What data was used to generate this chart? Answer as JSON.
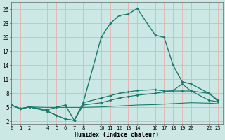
{
  "bg_color": "#cce8e4",
  "grid_color": "#e8b0b0",
  "line_color": "#1a7a6e",
  "x_ticks": [
    0,
    1,
    2,
    4,
    5,
    6,
    7,
    8,
    10,
    11,
    12,
    13,
    14,
    16,
    17,
    18,
    19,
    20,
    22,
    23
  ],
  "y_ticks": [
    2,
    5,
    8,
    11,
    14,
    17,
    20,
    23,
    26
  ],
  "xlabel": "Humidex (Indice chaleur)",
  "series": [
    {
      "x": [
        0,
        1,
        2,
        4,
        5,
        6,
        7,
        8,
        10,
        11,
        12,
        13,
        14,
        16,
        17,
        18,
        19,
        20,
        22,
        23
      ],
      "y": [
        5.5,
        4.7,
        5.1,
        5.0,
        5.0,
        5.0,
        5.0,
        5.0,
        5.1,
        5.2,
        5.3,
        5.4,
        5.5,
        5.6,
        5.7,
        5.8,
        5.9,
        6.0,
        5.9,
        5.8
      ],
      "marker": false,
      "lw": 0.8
    },
    {
      "x": [
        0,
        1,
        2,
        4,
        5,
        6,
        7,
        8,
        10,
        11,
        12,
        13,
        14,
        16,
        17,
        18,
        19,
        20,
        22,
        23
      ],
      "y": [
        5.5,
        4.7,
        5.1,
        4.2,
        3.3,
        2.5,
        2.2,
        5.5,
        6.0,
        6.5,
        7.0,
        7.3,
        7.6,
        8.0,
        8.3,
        8.6,
        10.0,
        8.5,
        6.5,
        6.2
      ],
      "marker": true,
      "lw": 0.9
    },
    {
      "x": [
        0,
        1,
        2,
        4,
        5,
        6,
        7,
        8,
        10,
        11,
        12,
        13,
        14,
        16,
        17,
        18,
        19,
        20,
        22,
        23
      ],
      "y": [
        5.5,
        4.7,
        5.1,
        4.2,
        3.3,
        2.5,
        2.2,
        6.0,
        7.0,
        7.5,
        8.0,
        8.3,
        8.6,
        8.8,
        8.5,
        8.5,
        8.5,
        8.5,
        8.0,
        6.5
      ],
      "marker": true,
      "lw": 0.9
    },
    {
      "x": [
        0,
        1,
        2,
        4,
        5,
        6,
        7,
        8,
        10,
        11,
        12,
        13,
        14,
        16,
        17,
        18,
        19,
        20,
        22,
        23
      ],
      "y": [
        5.5,
        4.7,
        5.1,
        4.5,
        5.0,
        5.5,
        2.2,
        6.0,
        20.0,
        23.0,
        24.7,
        25.0,
        26.2,
        20.5,
        20.0,
        14.0,
        10.5,
        10.0,
        8.0,
        6.3
      ],
      "marker": true,
      "lw": 1.0
    }
  ],
  "xlim": [
    0,
    23.5
  ],
  "ylim": [
    1.5,
    27.5
  ]
}
